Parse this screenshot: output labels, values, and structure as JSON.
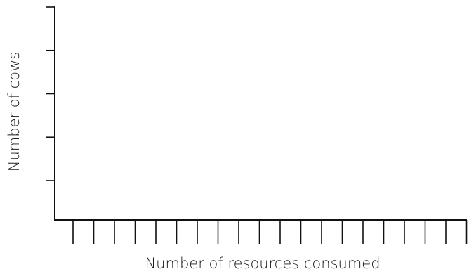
{
  "chart_data": {
    "type": "bar",
    "title": "",
    "xlabel": "Number of resources consumed",
    "ylabel": "Number of cows",
    "x_tick_count": 20,
    "y_tick_count": 5,
    "categories": [],
    "values": [],
    "grid": false,
    "legend": "none"
  }
}
